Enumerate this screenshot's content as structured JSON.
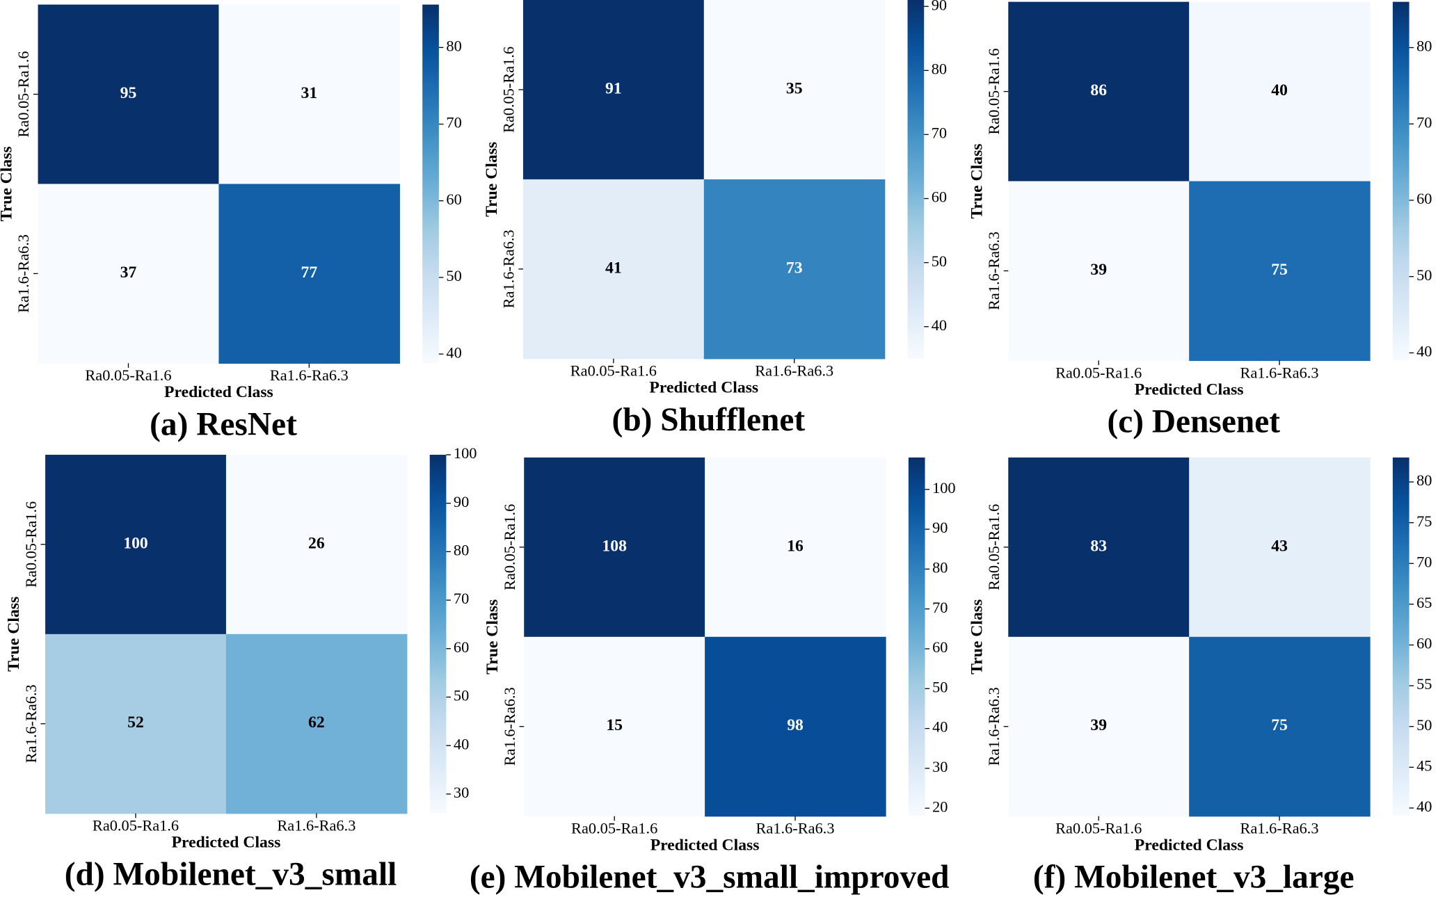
{
  "chart_data": [
    {
      "type": "heatmap",
      "title": "(a) ResNet",
      "x_label": "Predicted Class",
      "y_label": "True Class",
      "x_categories": [
        "Ra0.05-Ra1.6",
        "Ra1.6-Ra6.3"
      ],
      "y_categories": [
        "Ra0.05-Ra1.6",
        "Ra1.6-Ra6.3"
      ],
      "values": [
        [
          95,
          31
        ],
        [
          37,
          77
        ]
      ],
      "colormap": "Blues",
      "colorbar_lim": [
        38.8,
        85.6
      ],
      "colorbar_ticks": [
        40,
        50,
        60,
        70,
        80
      ]
    },
    {
      "type": "heatmap",
      "title": "(b) Shufflenet",
      "x_label": "Predicted Class",
      "y_label": "True Class",
      "x_categories": [
        "Ra0.05-Ra1.6",
        "Ra1.6-Ra6.3"
      ],
      "y_categories": [
        "Ra0.05-Ra1.6",
        "Ra1.6-Ra6.3"
      ],
      "values": [
        [
          91,
          35
        ],
        [
          41,
          73
        ]
      ],
      "colormap": "Blues",
      "colorbar_lim": [
        35,
        91
      ],
      "colorbar_ticks": [
        40,
        50,
        60,
        70,
        80,
        90
      ]
    },
    {
      "type": "heatmap",
      "title": "(c) Densenet",
      "x_label": "Predicted Class",
      "y_label": "True Class",
      "x_categories": [
        "Ra0.05-Ra1.6",
        "Ra1.6-Ra6.3"
      ],
      "y_categories": [
        "Ra0.05-Ra1.6",
        "Ra1.6-Ra6.3"
      ],
      "values": [
        [
          86,
          40
        ],
        [
          39,
          75
        ]
      ],
      "colormap": "Blues",
      "colorbar_lim": [
        39,
        86
      ],
      "colorbar_ticks": [
        40,
        50,
        60,
        70,
        80
      ]
    },
    {
      "type": "heatmap",
      "title": "(d) Mobilenet_v3_small",
      "x_label": "Predicted Class",
      "y_label": "True Class",
      "x_categories": [
        "Ra0.05-Ra1.6",
        "Ra1.6-Ra6.3"
      ],
      "y_categories": [
        "Ra0.05-Ra1.6",
        "Ra1.6-Ra6.3"
      ],
      "values": [
        [
          100,
          26
        ],
        [
          52,
          62
        ]
      ],
      "colormap": "Blues",
      "colorbar_lim": [
        26,
        100
      ],
      "colorbar_ticks": [
        30,
        40,
        50,
        60,
        70,
        80,
        90,
        100
      ]
    },
    {
      "type": "heatmap",
      "title": "(e) Mobilenet_v3_small_improved",
      "x_label": "Predicted Class",
      "y_label": "True Class",
      "x_categories": [
        "Ra0.05-Ra1.6",
        "Ra1.6-Ra6.3"
      ],
      "y_categories": [
        "Ra0.05-Ra1.6",
        "Ra1.6-Ra6.3"
      ],
      "values": [
        [
          108,
          16
        ],
        [
          15,
          98
        ]
      ],
      "colormap": "Blues",
      "colorbar_lim": [
        18,
        108
      ],
      "colorbar_ticks": [
        20,
        30,
        40,
        50,
        60,
        70,
        80,
        90,
        100
      ]
    },
    {
      "type": "heatmap",
      "title": "(f) Mobilenet_v3_large",
      "x_label": "Predicted Class",
      "y_label": "True Class",
      "x_categories": [
        "Ra0.05-Ra1.6",
        "Ra1.6-Ra6.3"
      ],
      "y_categories": [
        "Ra0.05-Ra1.6",
        "Ra1.6-Ra6.3"
      ],
      "values": [
        [
          83,
          43
        ],
        [
          39,
          75
        ]
      ],
      "colormap": "Blues",
      "colorbar_lim": [
        39,
        83
      ],
      "colorbar_ticks": [
        40,
        45,
        50,
        55,
        60,
        65,
        70,
        75,
        80
      ]
    }
  ]
}
